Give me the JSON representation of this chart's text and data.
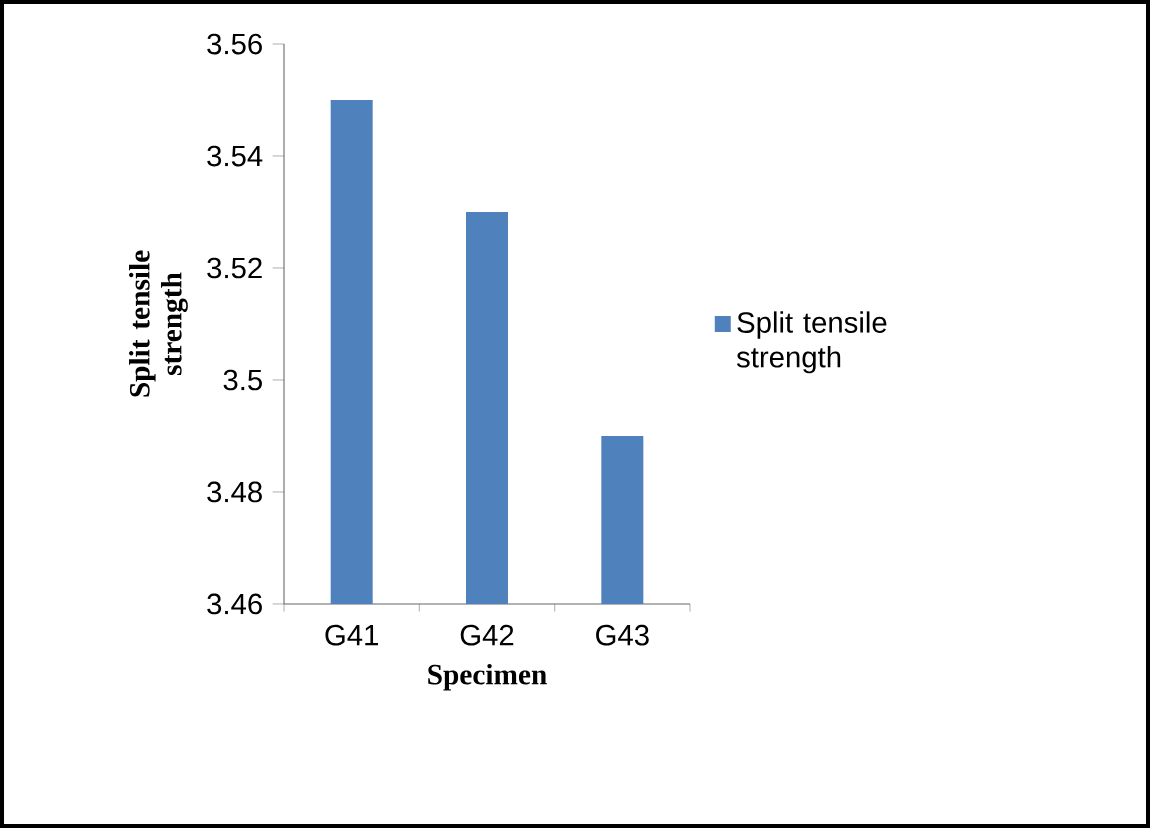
{
  "chart_data": {
    "type": "bar",
    "xlabel": "Specimen",
    "ylabel": "Split tensile strength",
    "categories": [
      "G41",
      "G42",
      "G43"
    ],
    "series": [
      {
        "name": "Split tensile strength",
        "color": "#4f81bd",
        "values": [
          3.55,
          3.53,
          3.49
        ]
      }
    ],
    "ylim": [
      3.46,
      3.56
    ],
    "yticks": [
      3.46,
      3.48,
      3.5,
      3.52,
      3.54,
      3.56
    ],
    "legend": "right"
  }
}
